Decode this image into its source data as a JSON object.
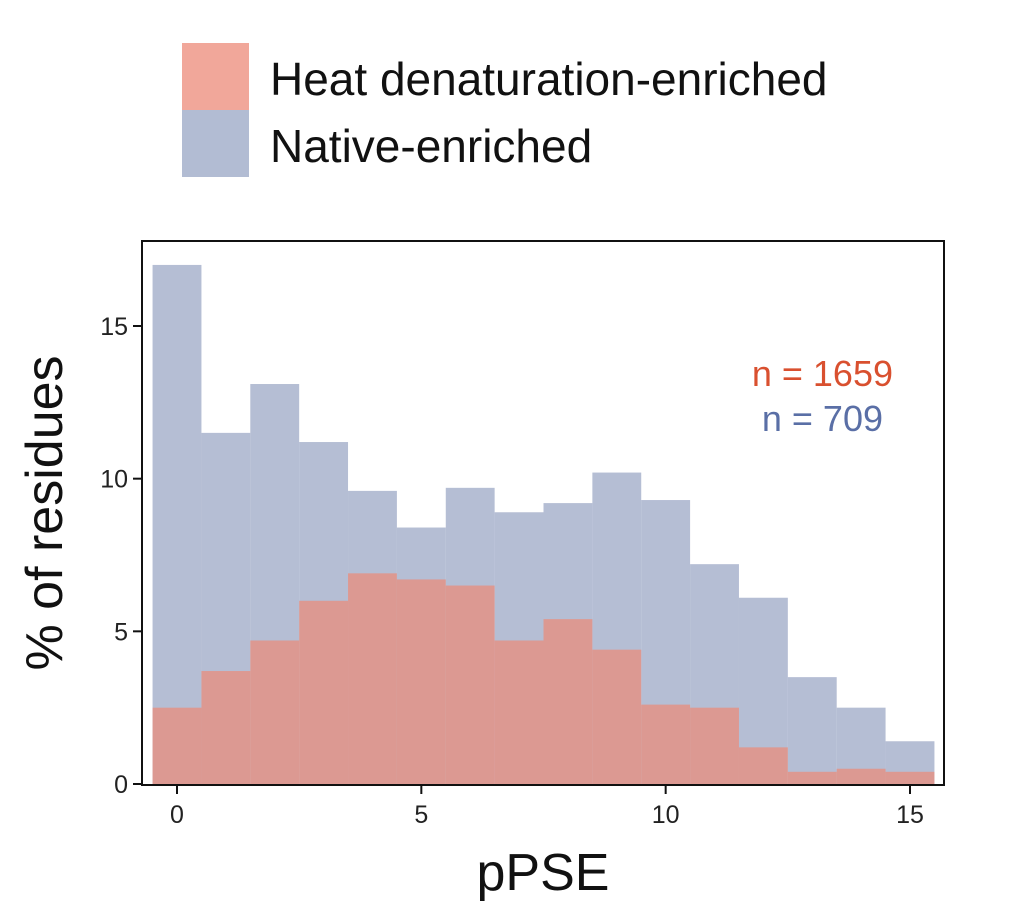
{
  "chart_data": {
    "type": "bar",
    "subtype": "overlapping-histogram",
    "xlabel": "pPSE",
    "ylabel": "% of residues",
    "xlim": [
      -0.5,
      15.5
    ],
    "ylim": [
      0,
      17.5
    ],
    "x_ticks": [
      0,
      5,
      10,
      15
    ],
    "y_ticks": [
      0,
      5,
      10,
      15
    ],
    "bin_width": 1,
    "bin_centers": [
      0,
      1,
      2,
      3,
      4,
      5,
      6,
      7,
      8,
      9,
      10,
      11,
      12,
      13,
      14,
      15
    ],
    "legend_position": "top",
    "grid": false,
    "series": [
      {
        "name": "Heat denaturation-enriched",
        "color": "#ec8a78",
        "values": [
          2.5,
          3.7,
          4.7,
          6.0,
          6.9,
          6.7,
          6.5,
          4.7,
          5.4,
          4.4,
          2.6,
          2.5,
          1.2,
          0.4,
          0.5,
          0.4
        ]
      },
      {
        "name": "Native-enriched",
        "color": "#98a5c4",
        "values": [
          17.0,
          11.5,
          13.1,
          11.2,
          9.6,
          8.4,
          9.7,
          8.9,
          9.2,
          10.2,
          9.3,
          7.2,
          6.1,
          3.5,
          2.5,
          1.4
        ]
      }
    ],
    "annotations": [
      {
        "text": "n = 1659",
        "color": "#d9502f"
      },
      {
        "text": "n = 709",
        "color": "#5a6fa6"
      }
    ]
  }
}
